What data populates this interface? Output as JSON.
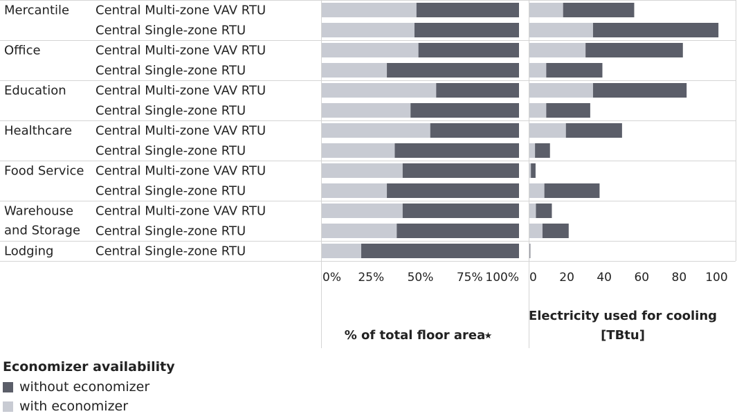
{
  "chart_data": {
    "type": "bar",
    "orientation": "horizontal",
    "stacked": true,
    "rows": [
      {
        "sector": "Mercantile",
        "system": "Central Multi-zone VAV RTU"
      },
      {
        "sector": "",
        "system": "Central Single-zone RTU"
      },
      {
        "sector": "Office",
        "system": "Central Multi-zone VAV RTU"
      },
      {
        "sector": "",
        "system": "Central Single-zone RTU"
      },
      {
        "sector": "Education",
        "system": "Central Multi-zone VAV RTU"
      },
      {
        "sector": "",
        "system": "Central Single-zone RTU"
      },
      {
        "sector": "Healthcare",
        "system": "Central Multi-zone VAV RTU"
      },
      {
        "sector": "",
        "system": "Central Single-zone RTU"
      },
      {
        "sector": "Food Service",
        "system": "Central Multi-zone VAV RTU"
      },
      {
        "sector": "",
        "system": "Central Single-zone RTU"
      },
      {
        "sector": [
          "Warehouse",
          "and Storage"
        ],
        "system": "Central Multi-zone VAV RTU"
      },
      {
        "sector": "",
        "system": "Central Single-zone RTU"
      },
      {
        "sector": "Lodging",
        "system": "Central Single-zone RTU"
      }
    ],
    "panels": [
      {
        "id": "floor-area",
        "xlabel": [
          "% of total floor area"
        ],
        "pin_icon": "pin-icon",
        "xlim": [
          0,
          100
        ],
        "ticks": [
          0,
          25,
          50,
          75,
          100
        ],
        "tick_labels": [
          "0%",
          "25%",
          "50%",
          "75%",
          "100%"
        ],
        "series": [
          {
            "name": "with economizer",
            "values": [
              48,
              47,
              49,
              33,
              58,
              45,
              55,
              37,
              41,
              33,
              41,
              38,
              20
            ]
          },
          {
            "name": "without economizer",
            "values": [
              52,
              53,
              51,
              67,
              42,
              55,
              45,
              63,
              59,
              67,
              59,
              62,
              80
            ]
          }
        ]
      },
      {
        "id": "cooling-electricity",
        "xlabel": [
          "Electricity used for cooling",
          "[TBtu]"
        ],
        "xlim": [
          0,
          105
        ],
        "ticks": [
          0,
          20,
          40,
          60,
          80,
          100
        ],
        "tick_labels": [
          "0",
          "20",
          "40",
          "60",
          "80",
          "100"
        ],
        "series": [
          {
            "name": "with economizer",
            "values": [
              18,
              34,
              30,
              9,
              34,
              9,
              19.5,
              3,
              0.8,
              8,
              3.5,
              7,
              0.2
            ]
          },
          {
            "name": "without economizer",
            "values": [
              38,
              67,
              52,
              30,
              50,
              23.5,
              30,
              8,
              2.5,
              29.5,
              8.5,
              14,
              0.3
            ]
          }
        ]
      }
    ],
    "legend": {
      "title": "Economizer availability",
      "placement": "bottom-left",
      "items": [
        {
          "name": "without economizer",
          "color": "#5b5e69"
        },
        {
          "name": "with economizer",
          "color": "#c8cbd3"
        }
      ]
    },
    "colors": {
      "with economizer": "#c8cbd3",
      "without economizer": "#5b5e69",
      "grid": "#d4d4d4"
    }
  }
}
